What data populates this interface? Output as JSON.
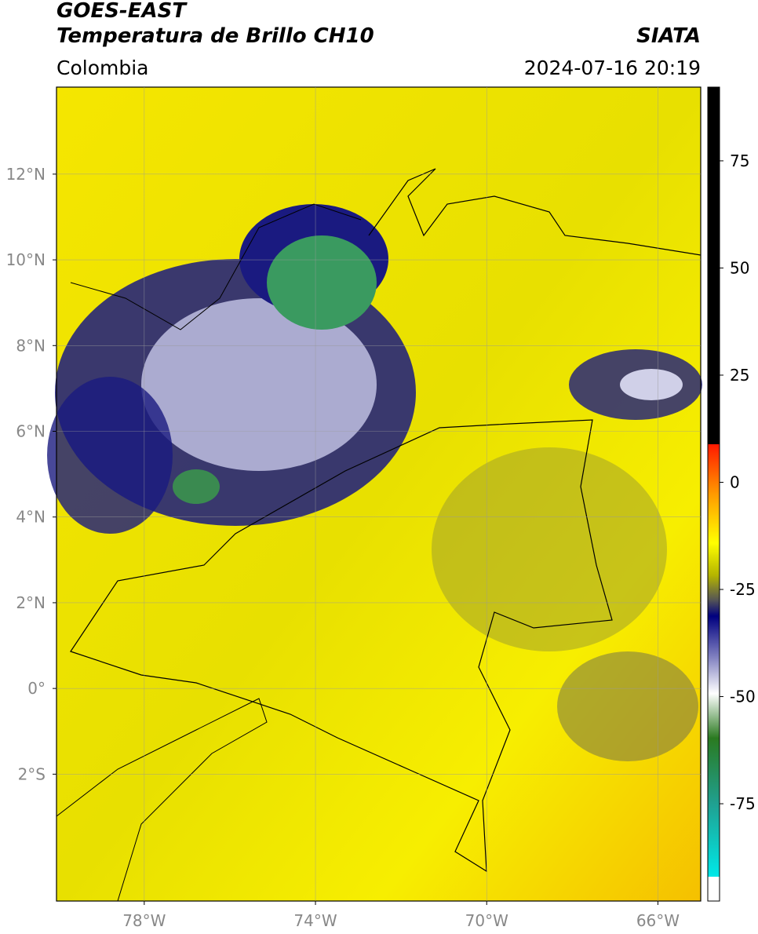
{
  "header": {
    "line1": "GOES-EAST",
    "line2": "Temperatura de Brillo CH10",
    "region": "Colombia",
    "source": "SIATA",
    "datetime": "2024-07-16 20:19"
  },
  "map": {
    "lon_range": [
      -80.05,
      -65.0
    ],
    "lat_range": [
      -4.96,
      14.03
    ],
    "lon_ticks": [
      {
        "value": -78,
        "label": "78°W"
      },
      {
        "value": -74,
        "label": "74°W"
      },
      {
        "value": -70,
        "label": "70°W"
      },
      {
        "value": -66,
        "label": "66°W"
      }
    ],
    "lat_ticks": [
      {
        "value": 12,
        "label": "12°N"
      },
      {
        "value": 10,
        "label": "10°N"
      },
      {
        "value": 8,
        "label": "8°N"
      },
      {
        "value": 6,
        "label": "6°N"
      },
      {
        "value": 4,
        "label": "4°N"
      },
      {
        "value": 2,
        "label": "2°N"
      },
      {
        "value": 0,
        "label": "0°"
      },
      {
        "value": -2,
        "label": "2°S"
      }
    ]
  },
  "colorbar": {
    "range": [
      -97.7,
      92.2
    ],
    "ticks": [
      75,
      50,
      25,
      0,
      -25,
      -50,
      -75
    ]
  }
}
